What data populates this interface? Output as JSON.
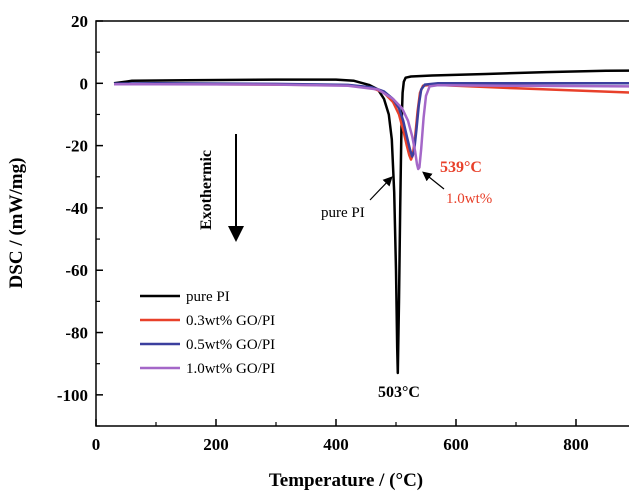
{
  "chart_data": {
    "type": "line",
    "title": "",
    "xlabel": "Temperature / (°C)",
    "ylabel": "DSC / (mW/mg)",
    "xlim": [
      0,
      900
    ],
    "ylim": [
      -110,
      20
    ],
    "x_ticks": [
      0,
      200,
      400,
      600,
      800
    ],
    "y_ticks": [
      20,
      0,
      -20,
      -40,
      -60,
      -80,
      -100
    ],
    "x_tick_labels": [
      "0",
      "200",
      "400",
      "600",
      "800"
    ],
    "y_tick_labels": [
      "20",
      "0",
      "-20",
      "-40",
      "-60",
      "-80",
      "-100"
    ],
    "grid": false,
    "legend_position": "bottom-left",
    "series": [
      {
        "name": "pure PI",
        "color": "#000000",
        "points": [
          [
            30,
            0
          ],
          [
            60,
            0.8
          ],
          [
            150,
            1
          ],
          [
            300,
            1.2
          ],
          [
            400,
            1.2
          ],
          [
            430,
            0.8
          ],
          [
            455,
            -0.5
          ],
          [
            470,
            -2
          ],
          [
            480,
            -5
          ],
          [
            488,
            -10
          ],
          [
            493,
            -18
          ],
          [
            497,
            -35
          ],
          [
            500,
            -60
          ],
          [
            502,
            -85
          ],
          [
            503,
            -93
          ],
          [
            505,
            -70
          ],
          [
            507,
            -40
          ],
          [
            509,
            -15
          ],
          [
            511,
            -3
          ],
          [
            513,
            0.5
          ],
          [
            516,
            1.8
          ],
          [
            525,
            2.2
          ],
          [
            560,
            2.5
          ],
          [
            650,
            3
          ],
          [
            750,
            3.6
          ],
          [
            850,
            4
          ],
          [
            900,
            4.1
          ]
        ]
      },
      {
        "name": "0.3wt% GO/PI",
        "color": "#e8402a",
        "points": [
          [
            30,
            -0.2
          ],
          [
            100,
            -0.2
          ],
          [
            300,
            -0.4
          ],
          [
            420,
            -0.6
          ],
          [
            460,
            -1.5
          ],
          [
            480,
            -3
          ],
          [
            495,
            -6
          ],
          [
            505,
            -10
          ],
          [
            512,
            -15
          ],
          [
            518,
            -20
          ],
          [
            522,
            -23
          ],
          [
            525,
            -24.5
          ],
          [
            528,
            -23
          ],
          [
            532,
            -17
          ],
          [
            536,
            -9
          ],
          [
            540,
            -3
          ],
          [
            545,
            -0.8
          ],
          [
            560,
            -0.4
          ],
          [
            600,
            -0.8
          ],
          [
            700,
            -1.6
          ],
          [
            800,
            -2.3
          ],
          [
            900,
            -3
          ]
        ]
      },
      {
        "name": "0.5wt% GO/PI",
        "color": "#3b3f9e",
        "points": [
          [
            30,
            -0.1
          ],
          [
            100,
            0
          ],
          [
            300,
            -0.2
          ],
          [
            420,
            -0.5
          ],
          [
            460,
            -1.3
          ],
          [
            480,
            -2.6
          ],
          [
            495,
            -5
          ],
          [
            505,
            -8
          ],
          [
            512,
            -12
          ],
          [
            518,
            -17
          ],
          [
            523,
            -21
          ],
          [
            527,
            -23.5
          ],
          [
            530,
            -22
          ],
          [
            534,
            -15
          ],
          [
            538,
            -7
          ],
          [
            542,
            -2
          ],
          [
            548,
            -0.4
          ],
          [
            570,
            0
          ],
          [
            700,
            0
          ],
          [
            900,
            0
          ]
        ]
      },
      {
        "name": "1.0wt% GO/PI",
        "color": "#a467c8",
        "points": [
          [
            30,
            -0.3
          ],
          [
            100,
            -0.3
          ],
          [
            300,
            -0.4
          ],
          [
            420,
            -0.8
          ],
          [
            470,
            -2
          ],
          [
            495,
            -5
          ],
          [
            510,
            -8
          ],
          [
            520,
            -12
          ],
          [
            527,
            -17
          ],
          [
            532,
            -22
          ],
          [
            535,
            -26
          ],
          [
            537,
            -27.5
          ],
          [
            539,
            -27
          ],
          [
            542,
            -21
          ],
          [
            546,
            -11
          ],
          [
            550,
            -4
          ],
          [
            556,
            -1
          ],
          [
            570,
            -0.6
          ],
          [
            700,
            -0.8
          ],
          [
            900,
            -1
          ]
        ]
      }
    ],
    "annotations": [
      {
        "text": "pure PI",
        "color": "#000000"
      },
      {
        "text": "503°C",
        "color": "#000000"
      },
      {
        "text": "539°C",
        "color": "#e8402a"
      },
      {
        "text": "1.0wt%",
        "color": "#e8402a"
      },
      {
        "text": "Exothermic",
        "color": "#000000"
      }
    ]
  }
}
